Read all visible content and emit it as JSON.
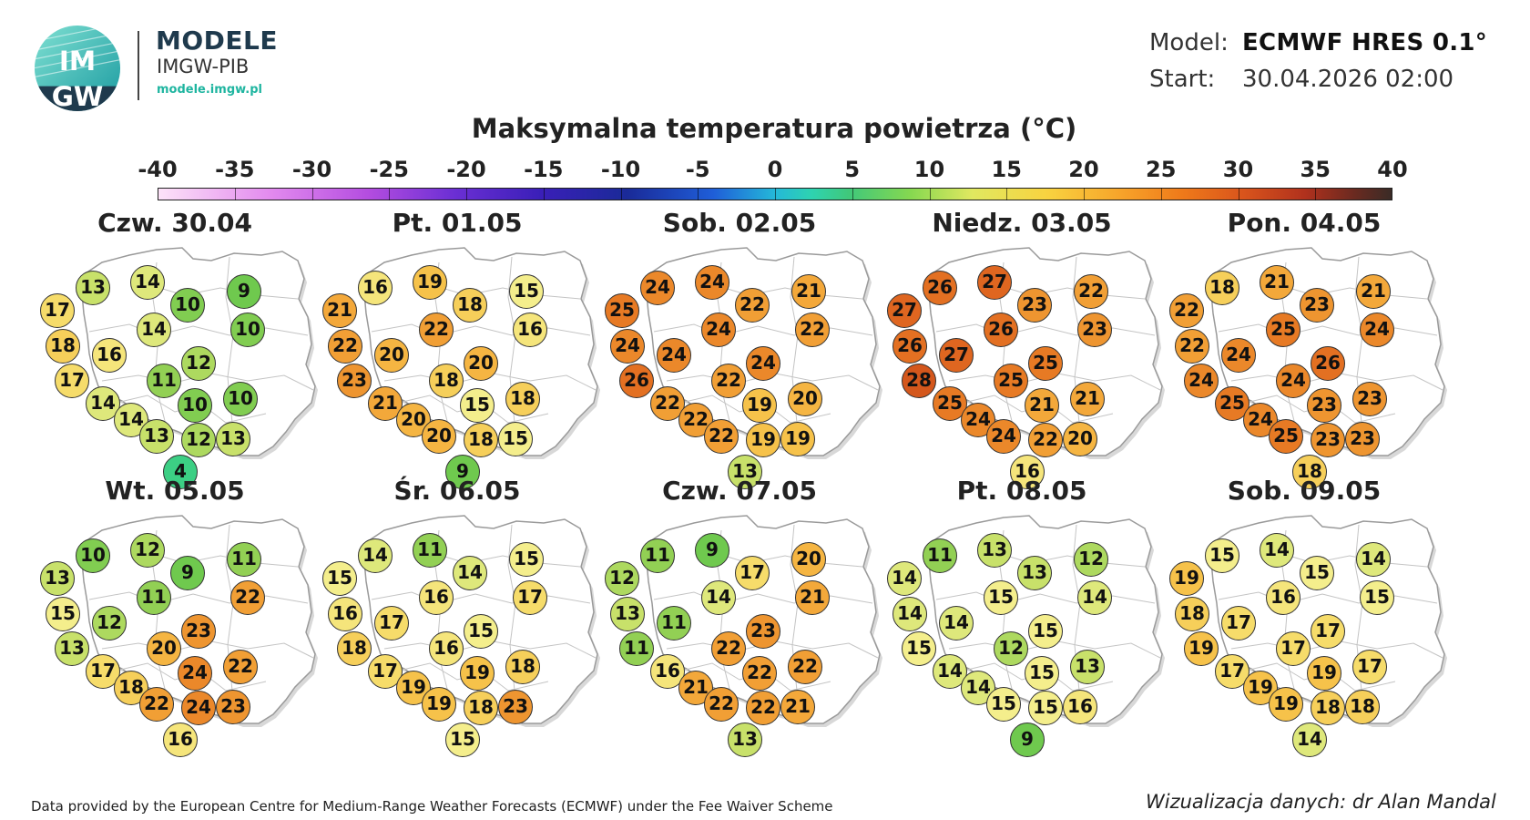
{
  "header": {
    "logo_text": "IMGW",
    "brand_title": "MODELE",
    "brand_subtitle": "IMGW-PIB",
    "brand_url": "modele.imgw.pl",
    "model_label": "Model:",
    "model_value": "ECMWF HRES 0.1°",
    "start_label": "Start:",
    "start_value": "30.04.2026 02:00"
  },
  "title": "Maksymalna temperatura powietrza (°C)",
  "scale": {
    "labels": [
      "-40",
      "-35",
      "-30",
      "-25",
      "-20",
      "-15",
      "-10",
      "-5",
      "0",
      "5",
      "10",
      "15",
      "20",
      "25",
      "30",
      "35",
      "40"
    ],
    "min": -40,
    "max": 40
  },
  "panels": [
    {
      "date": "Czw. 30.04",
      "values": [
        13,
        14,
        9,
        17,
        10,
        10,
        18,
        14,
        16,
        12,
        17,
        11,
        14,
        10,
        10,
        14,
        13,
        12,
        13,
        4
      ]
    },
    {
      "date": "Pt. 01.05",
      "values": [
        16,
        19,
        15,
        21,
        18,
        16,
        22,
        22,
        20,
        20,
        23,
        18,
        21,
        18,
        15,
        20,
        20,
        18,
        15,
        9
      ]
    },
    {
      "date": "Sob. 02.05",
      "values": [
        24,
        24,
        21,
        25,
        22,
        22,
        24,
        24,
        24,
        24,
        26,
        22,
        22,
        20,
        19,
        22,
        22,
        19,
        19,
        13
      ]
    },
    {
      "date": "Niedz. 03.05",
      "values": [
        26,
        27,
        22,
        27,
        23,
        23,
        26,
        26,
        27,
        25,
        28,
        25,
        25,
        21,
        21,
        24,
        24,
        22,
        20,
        16
      ]
    },
    {
      "date": "Pon. 04.05",
      "values": [
        18,
        21,
        21,
        22,
        23,
        24,
        22,
        25,
        24,
        26,
        24,
        24,
        25,
        23,
        23,
        24,
        25,
        23,
        23,
        18
      ]
    },
    {
      "date": "Wt. 05.05",
      "values": [
        10,
        12,
        11,
        13,
        9,
        22,
        15,
        11,
        12,
        23,
        13,
        20,
        17,
        22,
        24,
        18,
        22,
        24,
        23,
        16
      ]
    },
    {
      "date": "Śr. 06.05",
      "values": [
        14,
        11,
        15,
        15,
        14,
        17,
        16,
        16,
        17,
        15,
        18,
        16,
        17,
        18,
        19,
        19,
        19,
        18,
        23,
        15
      ]
    },
    {
      "date": "Czw. 07.05",
      "values": [
        11,
        9,
        20,
        12,
        17,
        21,
        13,
        14,
        11,
        23,
        11,
        22,
        16,
        22,
        22,
        21,
        22,
        22,
        21,
        13
      ]
    },
    {
      "date": "Pt. 08.05",
      "values": [
        11,
        13,
        12,
        14,
        13,
        14,
        14,
        15,
        14,
        15,
        15,
        12,
        14,
        13,
        15,
        14,
        15,
        15,
        16,
        9
      ]
    },
    {
      "date": "Sob. 09.05",
      "values": [
        15,
        14,
        14,
        19,
        15,
        15,
        18,
        16,
        17,
        17,
        19,
        17,
        17,
        17,
        19,
        19,
        19,
        18,
        18,
        14
      ]
    }
  ],
  "footer": {
    "attribution": "Data provided by the European Centre for Medium-Range Weather Forecasts (ECMWF) under the Fee Waiver Scheme",
    "credit": "Wizualizacja danych: dr Alan Mandal"
  }
}
